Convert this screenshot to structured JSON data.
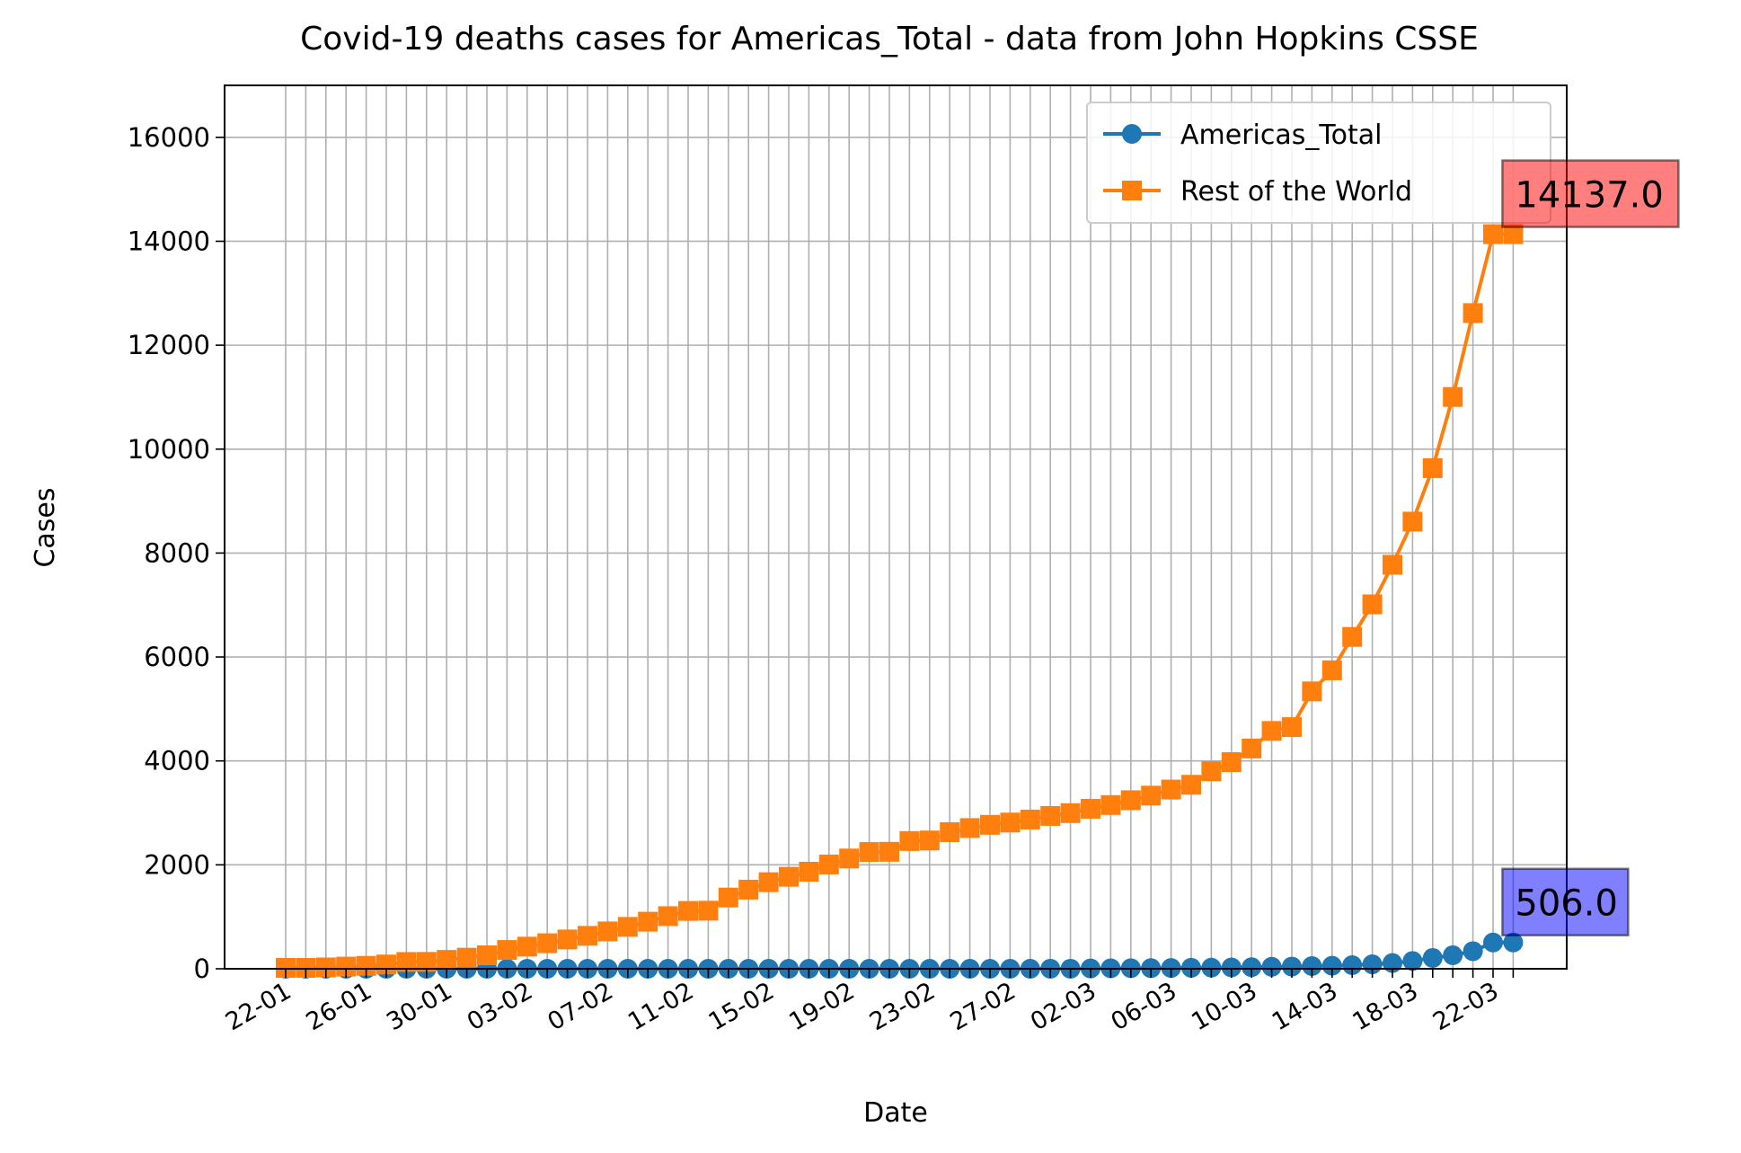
{
  "chart_data": {
    "type": "line",
    "title": "Covid-19 deaths cases for Americas_Total - data from John Hopkins CSSE",
    "xlabel": "Date",
    "ylabel": "Cases",
    "ylim": [
      0,
      17000
    ],
    "y_ticks": [
      0,
      2000,
      4000,
      6000,
      8000,
      10000,
      12000,
      14000,
      16000
    ],
    "y_tick_labels": [
      "0",
      "2000",
      "4000",
      "6000",
      "8000",
      "10000",
      "12000",
      "14000",
      "16000"
    ],
    "x_tick_labels": [
      "22-01",
      "26-01",
      "30-01",
      "03-02",
      "07-02",
      "11-02",
      "15-02",
      "19-02",
      "23-02",
      "27-02",
      "02-03",
      "06-03",
      "10-03",
      "14-03",
      "18-03",
      "22-03"
    ],
    "x_tick_label_every": 4,
    "grid": true,
    "legend_position": "top-right",
    "categories": [
      "22-01",
      "23-01",
      "24-01",
      "25-01",
      "26-01",
      "27-01",
      "28-01",
      "29-01",
      "30-01",
      "31-01",
      "01-02",
      "02-02",
      "03-02",
      "04-02",
      "05-02",
      "06-02",
      "07-02",
      "08-02",
      "09-02",
      "10-02",
      "11-02",
      "12-02",
      "13-02",
      "14-02",
      "15-02",
      "16-02",
      "17-02",
      "18-02",
      "19-02",
      "20-02",
      "21-02",
      "22-02",
      "23-02",
      "24-02",
      "25-02",
      "26-02",
      "27-02",
      "28-02",
      "29-02",
      "01-03",
      "02-03",
      "03-03",
      "04-03",
      "05-03",
      "06-03",
      "07-03",
      "08-03",
      "09-03",
      "10-03",
      "11-03",
      "12-03",
      "13-03",
      "14-03",
      "15-03",
      "16-03",
      "17-03",
      "18-03",
      "19-03",
      "20-03",
      "21-03",
      "22-03",
      "23-03"
    ],
    "series": [
      {
        "name": "Americas_Total",
        "color": "#1f77b4",
        "marker": "circle",
        "values": [
          0,
          0,
          0,
          0,
          0,
          0,
          0,
          0,
          0,
          0,
          0,
          0,
          0,
          0,
          0,
          0,
          0,
          0,
          0,
          0,
          0,
          0,
          0,
          0,
          0,
          0,
          0,
          0,
          0,
          0,
          0,
          0,
          0,
          0,
          0,
          0,
          0,
          0,
          1,
          1,
          6,
          9,
          11,
          12,
          15,
          19,
          22,
          26,
          30,
          38,
          42,
          52,
          58,
          69,
          86,
          110,
          150,
          208,
          260,
          338,
          506,
          506
        ],
        "annotation": {
          "text": "506.0",
          "color": "#0000ff"
        }
      },
      {
        "name": "Rest of the World",
        "color": "#ff7f0e",
        "marker": "square",
        "values": [
          17,
          18,
          26,
          42,
          56,
          82,
          131,
          133,
          171,
          213,
          259,
          362,
          426,
          492,
          564,
          634,
          719,
          806,
          906,
          1013,
          1113,
          1118,
          1371,
          1523,
          1666,
          1770,
          1868,
          2007,
          2122,
          2247,
          2251,
          2458,
          2469,
          2629,
          2708,
          2770,
          2814,
          2872,
          2941,
          2995,
          3079,
          3151,
          3244,
          3332,
          3449,
          3541,
          3801,
          3977,
          4239,
          4577,
          4651,
          5338,
          5743,
          6386,
          7013,
          7775,
          8605,
          9634,
          11004,
          12618,
          14137,
          14137
        ],
        "annotation": {
          "text": "14137.0",
          "color": "#ff0000"
        }
      }
    ]
  }
}
